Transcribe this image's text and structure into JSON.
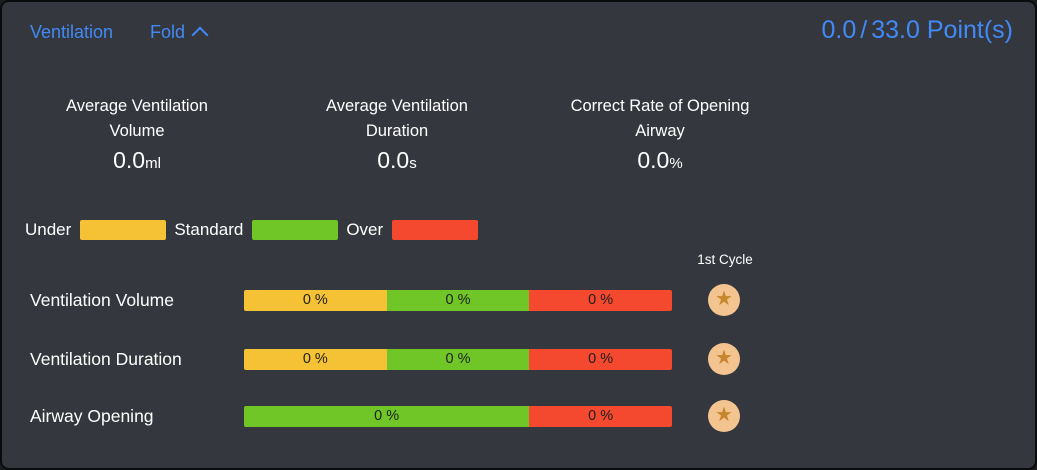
{
  "panel": {
    "title": "Ventilation",
    "fold_label": "Fold",
    "points_earned": "0.0",
    "points_slash": "/",
    "points_total": "33.0",
    "points_unit": "Point(s)"
  },
  "colors": {
    "accent_blue": "#4189f6",
    "panel_bg": "#34383e",
    "under_yellow": "#f5c235",
    "standard_green": "#70c626",
    "over_red": "#f4492e",
    "star_circle": "#f3c48f",
    "star": "#c5862e"
  },
  "stats": [
    {
      "label_lines": [
        "Average Ventilation",
        "Volume"
      ],
      "value": "0.0",
      "unit": "ml"
    },
    {
      "label_lines": [
        "Average Ventilation",
        "Duration"
      ],
      "value": "0.0",
      "unit": "s"
    },
    {
      "label_lines": [
        "Correct Rate of Opening",
        "Airway"
      ],
      "value": "0.0",
      "unit": "%"
    }
  ],
  "legend": [
    {
      "label": "Under",
      "color_key": "under_yellow"
    },
    {
      "label": "Standard",
      "color_key": "standard_green"
    },
    {
      "label": "Over",
      "color_key": "over_red"
    }
  ],
  "cycle_column_header": "1st Cycle",
  "bar_rows": [
    {
      "label": "Ventilation Volume",
      "segments": [
        {
          "text": "0 %",
          "color_key": "under_yellow",
          "width_pct": 33.33
        },
        {
          "text": "0 %",
          "color_key": "standard_green",
          "width_pct": 33.34
        },
        {
          "text": "0 %",
          "color_key": "over_red",
          "width_pct": 33.33
        }
      ],
      "star": true
    },
    {
      "label": "Ventilation Duration",
      "segments": [
        {
          "text": "0 %",
          "color_key": "under_yellow",
          "width_pct": 33.33
        },
        {
          "text": "0 %",
          "color_key": "standard_green",
          "width_pct": 33.34
        },
        {
          "text": "0 %",
          "color_key": "over_red",
          "width_pct": 33.33
        }
      ],
      "star": true
    },
    {
      "label": "Airway Opening",
      "segments": [
        {
          "text": "0 %",
          "color_key": "standard_green",
          "width_pct": 66.67
        },
        {
          "text": "0 %",
          "color_key": "over_red",
          "width_pct": 33.33
        }
      ],
      "star": true
    }
  ],
  "layout_hints": {
    "star_glyph": "★",
    "stat_col_lefts": [
      18,
      278,
      528
    ],
    "stat_col_widths": [
      234,
      234,
      260
    ],
    "bar_row_tops": [
      288,
      347,
      404
    ]
  }
}
